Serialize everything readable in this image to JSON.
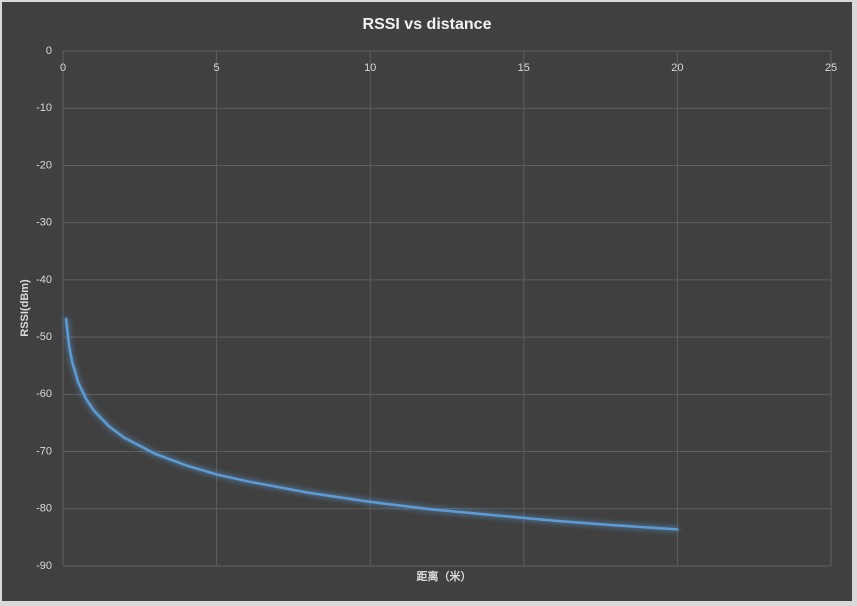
{
  "chart_data": {
    "type": "line",
    "title": "RSSI vs distance",
    "x_label": "距离（米）",
    "y_label": "RSSI(dBm)",
    "x": [
      0.1,
      0.2,
      0.3,
      0.5,
      0.75,
      1,
      1.5,
      2,
      3,
      4,
      5,
      6,
      8,
      10,
      12,
      14,
      16,
      18,
      20
    ],
    "values": [
      -46.8,
      -51.6,
      -54.4,
      -58.0,
      -60.8,
      -62.8,
      -65.6,
      -67.6,
      -70.4,
      -72.4,
      -74.0,
      -75.2,
      -77.2,
      -78.8,
      -80.1,
      -81.1,
      -82.1,
      -82.9,
      -83.6
    ],
    "color": "#5b9bd5",
    "xlim": [
      0,
      25
    ],
    "xticks": [
      0,
      5,
      10,
      15,
      20,
      25
    ],
    "ylim": [
      -90,
      0
    ],
    "yticks": [
      0,
      -10,
      -20,
      -30,
      -40,
      -50,
      -60,
      -70,
      -80,
      -90
    ],
    "grid": true
  }
}
